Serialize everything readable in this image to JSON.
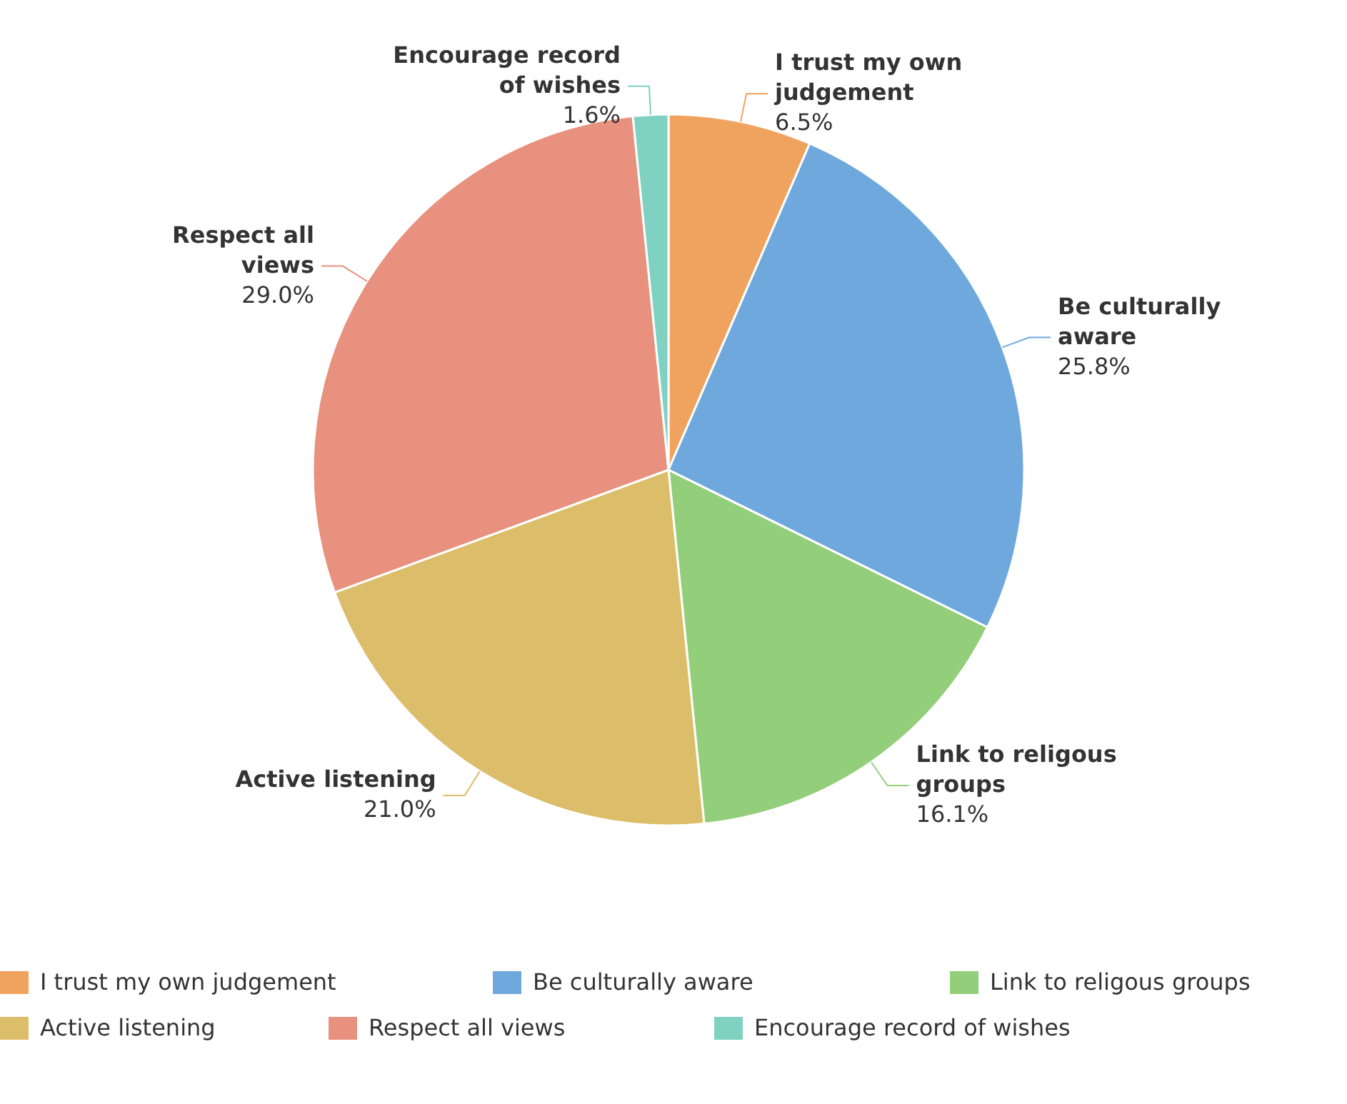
{
  "chart_data": {
    "type": "pie",
    "categories": [
      "I trust my own judgement",
      "Be culturally aware",
      "Link to religous groups",
      "Active listening",
      "Respect all views",
      "Encourage record of wishes"
    ],
    "values": [
      6.5,
      25.8,
      16.1,
      21.0,
      29.0,
      1.6
    ],
    "value_labels": [
      "6.5%",
      "25.8%",
      "16.1%",
      "21.0%",
      "29.0%",
      "1.6%"
    ],
    "colors": [
      "#f0a35e",
      "#6fa8dc",
      "#93cf7a",
      "#dcbd6a",
      "#e8917e",
      "#7fd1c1"
    ],
    "legend": "bottom"
  }
}
